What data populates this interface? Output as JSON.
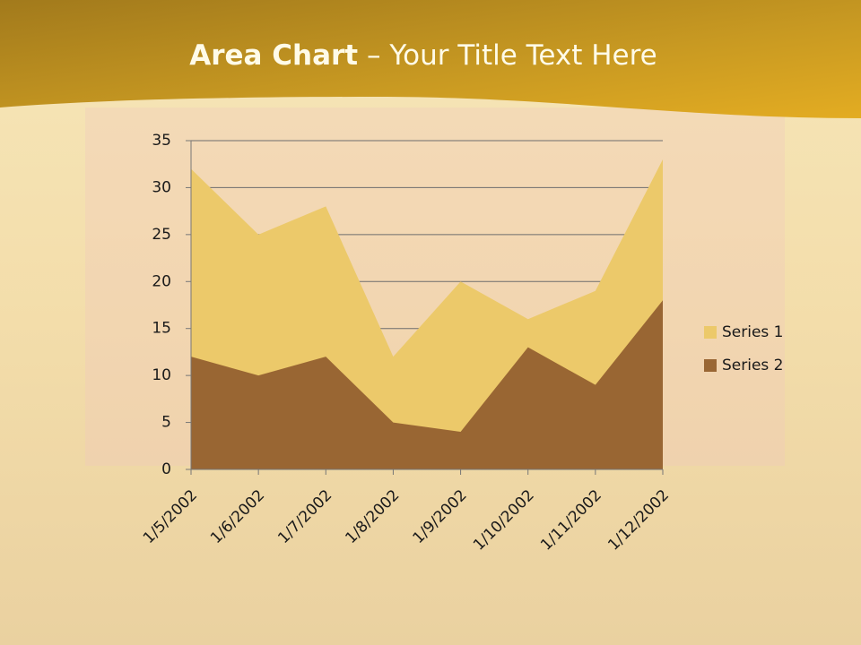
{
  "chart_data": {
    "type": "area",
    "title": [
      "Area Chart",
      "– Your Title Text Here"
    ],
    "categories": [
      "1/5/2002",
      "1/6/2002",
      "1/7/2002",
      "1/8/2002",
      "1/9/2002",
      "1/10/2002",
      "1/11/2002",
      "1/12/2002"
    ],
    "series": [
      {
        "name": "Series 1",
        "color": "#ecc96a",
        "values": [
          32,
          25,
          28,
          12,
          20,
          16,
          19,
          33
        ]
      },
      {
        "name": "Series 2",
        "color": "#996633",
        "values": [
          12,
          10,
          12,
          5,
          4,
          13,
          9,
          18
        ]
      }
    ],
    "ylim": [
      0,
      35
    ],
    "yticks": [
      0,
      5,
      10,
      15,
      20,
      25,
      30,
      35
    ],
    "grid": true,
    "legend": "right"
  }
}
